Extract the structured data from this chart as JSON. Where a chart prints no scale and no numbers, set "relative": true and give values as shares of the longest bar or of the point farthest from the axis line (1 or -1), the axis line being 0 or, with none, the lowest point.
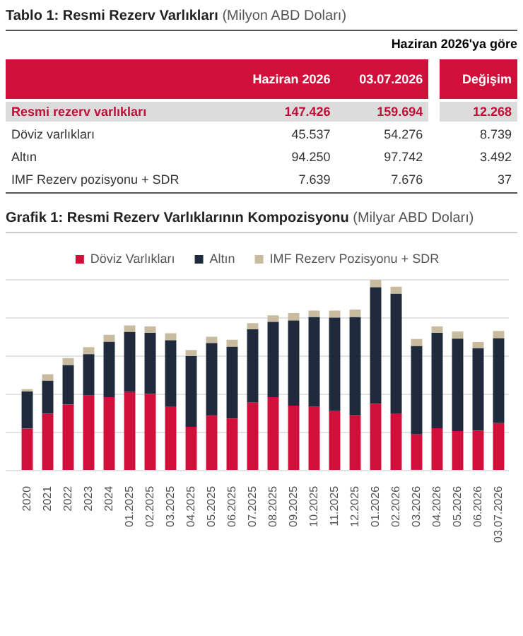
{
  "chart_data": [
    {
      "type": "other",
      "title": "Tablo 1: Resmi Rezerv Varlıkları",
      "subtitle": "(Milyon ABD Doları)",
      "annotations": [
        "Haziran 2026'ya göre"
      ],
      "categories": [
        "Resmi rezerv varlıkları",
        "Döviz varlıkları",
        "Altın",
        "IMF Rezerv pozisyonu + SDR"
      ],
      "series": [
        {
          "name": "Haziran 2026",
          "values": [
            147426,
            45537,
            94250,
            7639
          ],
          "value_labels": [
            "147.426",
            "45.537",
            "94.250",
            "7.639"
          ]
        },
        {
          "name": "03.07.2026",
          "values": [
            159694,
            54276,
            97742,
            7676
          ],
          "value_labels": [
            "159.694",
            "54.276",
            "97.742",
            "7.676"
          ]
        },
        {
          "name": "Değişim",
          "values": [
            12268,
            8739,
            3492,
            37
          ],
          "value_labels": [
            "12.268",
            "8.739",
            "3.492",
            "37"
          ]
        }
      ]
    },
    {
      "type": "bar",
      "title": "Grafik 1: Resmi Rezerv Varlıklarının Kompozisyonu",
      "subtitle": "(Milyar ABD Doları)",
      "stacked": true,
      "relative": true,
      "grid": "y",
      "legend": "top",
      "categories": [
        "2020",
        "2021",
        "2022",
        "2023",
        "2024",
        "01.2025",
        "02.2025",
        "03.2025",
        "04.2025",
        "05.2025",
        "06.2025",
        "07.2025",
        "08.2025",
        "09.2025",
        "10.2025",
        "11.2025",
        "12.2025",
        "01.2026",
        "02.2026",
        "03.2026",
        "04.2026",
        "05.2026",
        "06.2026",
        "03.07.2026"
      ],
      "series": [
        {
          "name": "Döviz Varlıkları",
          "color": "#d0103a",
          "values": [
            0.22,
            0.298,
            0.346,
            0.393,
            0.385,
            0.412,
            0.402,
            0.337,
            0.229,
            0.288,
            0.273,
            0.356,
            0.385,
            0.341,
            0.334,
            0.312,
            0.29,
            0.351,
            0.3,
            0.19,
            0.222,
            0.207,
            0.21,
            0.249
          ]
        },
        {
          "name": "Altın",
          "color": "#1f2a3c",
          "values": [
            0.195,
            0.173,
            0.207,
            0.217,
            0.29,
            0.315,
            0.32,
            0.346,
            0.371,
            0.38,
            0.376,
            0.385,
            0.395,
            0.446,
            0.471,
            0.49,
            0.515,
            0.61,
            0.627,
            0.463,
            0.5,
            0.485,
            0.432,
            0.444
          ]
        },
        {
          "name": "IMF Rezerv Pozisyonu + SDR",
          "color": "#c9bba0",
          "values": [
            0.012,
            0.034,
            0.037,
            0.037,
            0.037,
            0.034,
            0.034,
            0.037,
            0.032,
            0.034,
            0.037,
            0.032,
            0.034,
            0.039,
            0.034,
            0.037,
            0.039,
            0.039,
            0.037,
            0.037,
            0.034,
            0.037,
            0.032,
            0.039
          ]
        }
      ]
    }
  ]
}
